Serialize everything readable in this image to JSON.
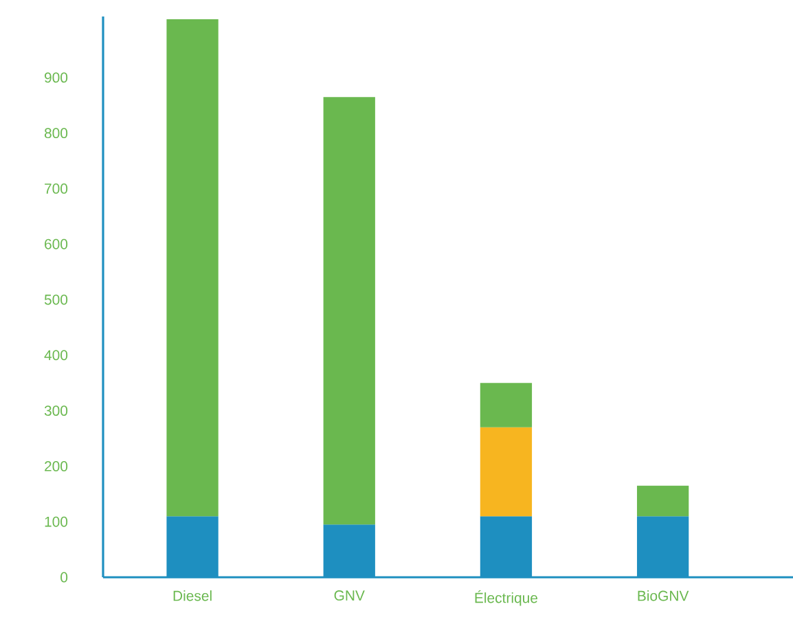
{
  "chart_data": {
    "type": "bar",
    "stacked": true,
    "categories": [
      "Diesel",
      "GNV",
      "Électrique",
      "BioGNV"
    ],
    "series": [
      {
        "color": "#1e8fc0",
        "values": [
          110,
          95,
          110,
          110
        ]
      },
      {
        "color": "#f7b520",
        "values": [
          null,
          null,
          160,
          null
        ]
      },
      {
        "color": "#6ab84f",
        "values": [
          895,
          770,
          80,
          55
        ]
      }
    ],
    "ylim": [
      0,
      1010
    ],
    "yticks": [
      0,
      100,
      200,
      300,
      400,
      500,
      600,
      700,
      800,
      900
    ]
  }
}
